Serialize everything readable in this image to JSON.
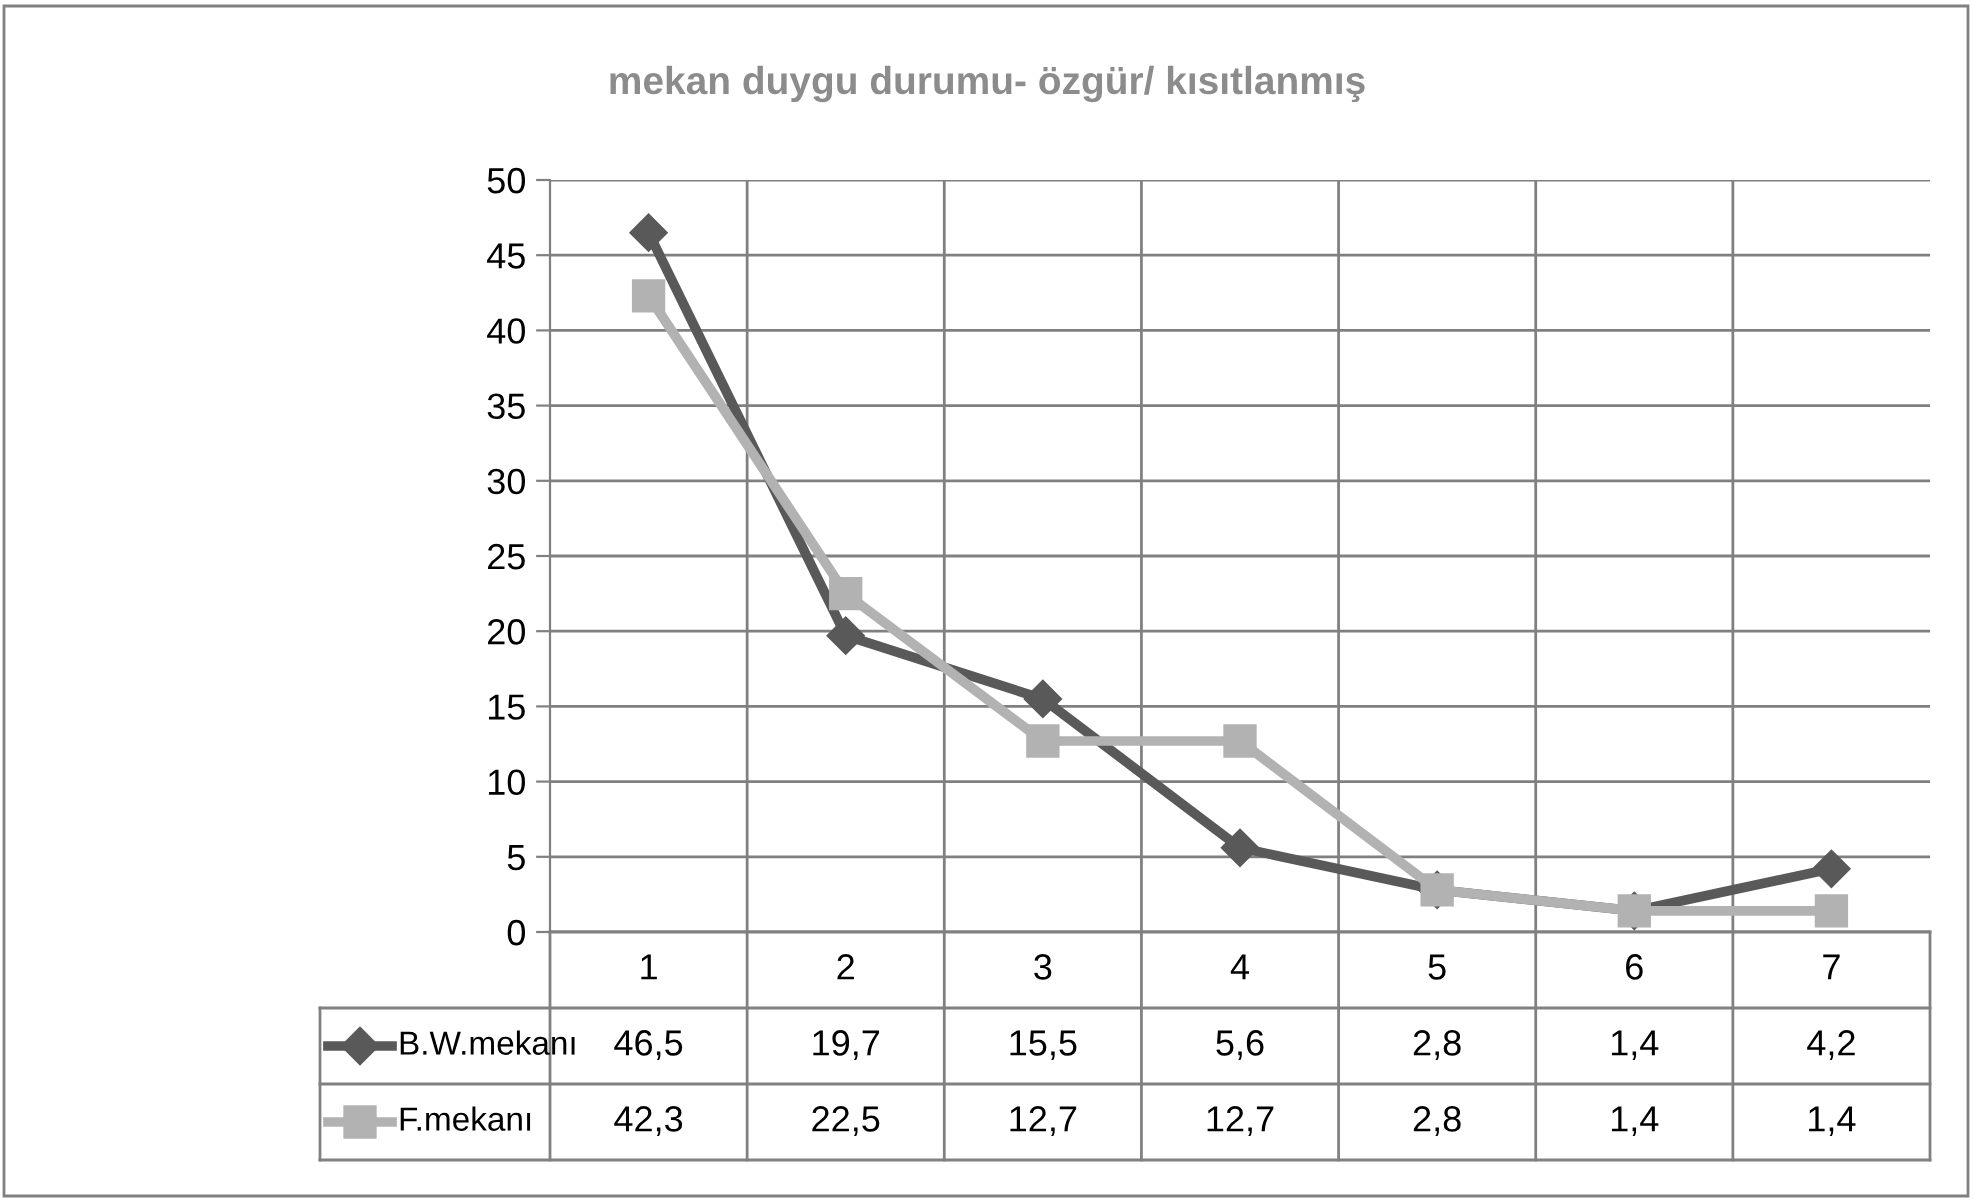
{
  "chart_data": {
    "type": "line",
    "title": "mekan duygu durumu- özgür/ kısıtlanmış",
    "categories": [
      "1",
      "2",
      "3",
      "4",
      "5",
      "6",
      "7"
    ],
    "series": [
      {
        "name": "B.W.mekanı",
        "color": "#595959",
        "marker": "diamond",
        "values": [
          46.5,
          19.7,
          15.5,
          5.6,
          2.8,
          1.4,
          4.2
        ],
        "value_labels": [
          "46,5",
          "19,7",
          "15,5",
          "5,6",
          "2,8",
          "1,4",
          "4,2"
        ]
      },
      {
        "name": "F.mekanı",
        "color": "#b2b2b2",
        "marker": "square",
        "values": [
          42.3,
          22.5,
          12.7,
          12.7,
          2.8,
          1.4,
          1.4
        ],
        "value_labels": [
          "42,3",
          "22,5",
          "12,7",
          "12,7",
          "2,8",
          "1,4",
          "1,4"
        ]
      }
    ],
    "ylim": [
      0,
      50
    ],
    "yticks": [
      0,
      5,
      10,
      15,
      20,
      25,
      30,
      35,
      40,
      45,
      50
    ],
    "grid": true,
    "legend": "bottom left",
    "line_style": "solid"
  }
}
